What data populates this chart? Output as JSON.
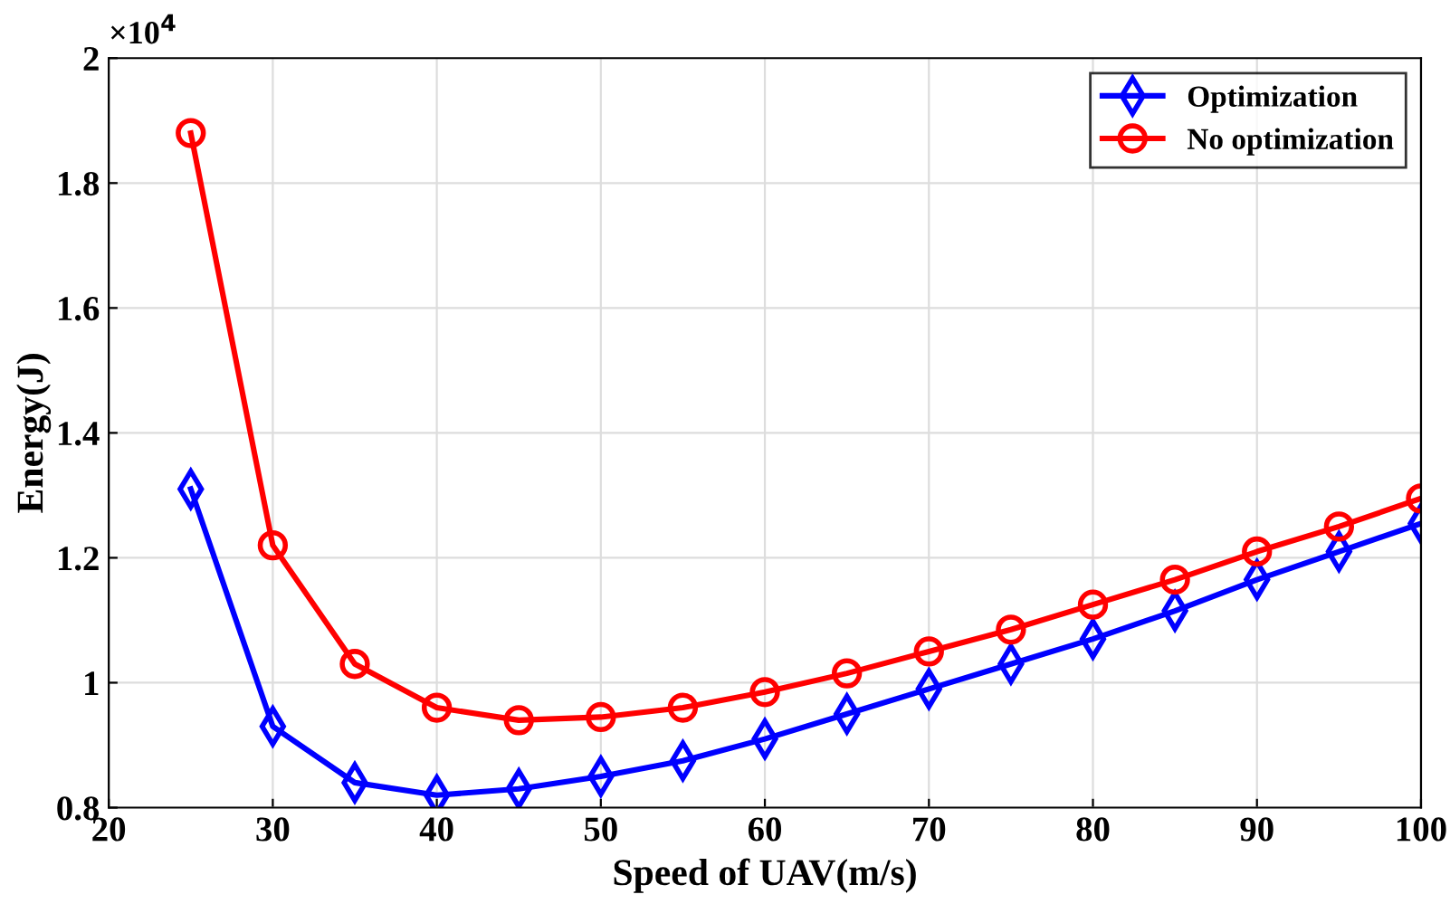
{
  "chart_data": {
    "type": "line",
    "xlabel": "Speed of UAV(m/s)",
    "ylabel": "Energy(J)",
    "x": [
      25,
      30,
      35,
      40,
      45,
      50,
      55,
      60,
      65,
      70,
      75,
      80,
      85,
      90,
      95,
      100
    ],
    "series": [
      {
        "name": "Optimization",
        "color": "#0000ff",
        "marker": "diamond",
        "values": [
          1.31,
          0.93,
          0.84,
          0.82,
          0.83,
          0.85,
          0.875,
          0.91,
          0.95,
          0.99,
          1.03,
          1.07,
          1.115,
          1.165,
          1.21,
          1.255
        ]
      },
      {
        "name": "No optimization",
        "color": "#ff0000",
        "marker": "circle",
        "values": [
          1.88,
          1.22,
          1.03,
          0.96,
          0.94,
          0.945,
          0.96,
          0.985,
          1.015,
          1.05,
          1.085,
          1.125,
          1.165,
          1.21,
          1.25,
          1.295
        ]
      }
    ],
    "xlim": [
      20,
      100
    ],
    "xticks": [
      20,
      30,
      40,
      50,
      60,
      70,
      80,
      90,
      100
    ],
    "ylim": [
      0.8,
      2
    ],
    "yticks": [
      0.8,
      1,
      1.2,
      1.4,
      1.6,
      1.8,
      2
    ],
    "annotations": [
      "×10$^{4}$"
    ],
    "grid": true,
    "legend": "top right",
    "line_style": "solid"
  }
}
